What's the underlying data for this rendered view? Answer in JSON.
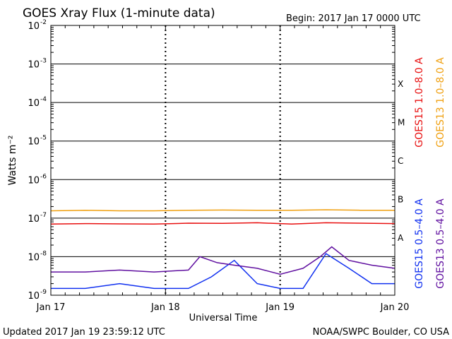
{
  "chart_data": {
    "type": "line",
    "title": "GOES Xray Flux (1-minute data)",
    "begin_label": "Begin:  2017 Jan 17 0000 UTC",
    "ylabel": "Watts m⁻²",
    "xlabel": "Universal Time",
    "y_scale": "log",
    "ylim": [
      1e-09,
      0.01
    ],
    "y_ticks": [
      {
        "value": 0.01,
        "label_base": "10",
        "label_exp": "-2"
      },
      {
        "value": 0.001,
        "label_base": "10",
        "label_exp": "-3"
      },
      {
        "value": 0.0001,
        "label_base": "10",
        "label_exp": "-4"
      },
      {
        "value": 1e-05,
        "label_base": "10",
        "label_exp": "-5"
      },
      {
        "value": 1e-06,
        "label_base": "10",
        "label_exp": "-6"
      },
      {
        "value": 1e-07,
        "label_base": "10",
        "label_exp": "-7"
      },
      {
        "value": 1e-08,
        "label_base": "10",
        "label_exp": "-8"
      },
      {
        "value": 1e-09,
        "label_base": "10",
        "label_exp": "-9"
      }
    ],
    "x_ticks": [
      "Jan 17",
      "Jan 18",
      "Jan 19",
      "Jan 20"
    ],
    "xlim_days": [
      0,
      3
    ],
    "flare_classes": [
      {
        "label": "X",
        "value": 0.000316
      },
      {
        "label": "M",
        "value": 3.16e-05
      },
      {
        "label": "C",
        "value": 3.16e-06
      },
      {
        "label": "B",
        "value": 3.16e-07
      },
      {
        "label": "A",
        "value": 3.16e-08
      }
    ],
    "series": [
      {
        "name": "GOES15 1.0–8.0 A",
        "color": "#e81010",
        "x": [
          0,
          0.3,
          0.6,
          0.9,
          1.2,
          1.5,
          1.8,
          2.1,
          2.4,
          2.7,
          3.0
        ],
        "y": [
          7e-08,
          7.2e-08,
          7.1e-08,
          7e-08,
          7.4e-08,
          7.3e-08,
          7.6e-08,
          7e-08,
          7.6e-08,
          7.4e-08,
          7.2e-08
        ]
      },
      {
        "name": "GOES13 1.0–8.0 A",
        "color": "#f0a010",
        "x": [
          0,
          0.3,
          0.6,
          0.9,
          1.2,
          1.5,
          1.8,
          2.1,
          2.4,
          2.7,
          3.0
        ],
        "y": [
          1.55e-07,
          1.6e-07,
          1.55e-07,
          1.55e-07,
          1.6e-07,
          1.62e-07,
          1.6e-07,
          1.6e-07,
          1.65e-07,
          1.6e-07,
          1.6e-07
        ]
      },
      {
        "name": "GOES15 0.5–4.0 A",
        "color": "#1030f0",
        "x": [
          0,
          0.3,
          0.6,
          0.9,
          1.2,
          1.4,
          1.6,
          1.8,
          2.0,
          2.2,
          2.4,
          2.6,
          2.8,
          3.0
        ],
        "y": [
          1.5e-09,
          1.5e-09,
          2e-09,
          1.5e-09,
          1.5e-09,
          3e-09,
          8e-09,
          2e-09,
          1.5e-09,
          1.5e-09,
          1.2e-08,
          5e-09,
          2e-09,
          2e-09
        ]
      },
      {
        "name": "GOES13 0.5–4.0 A",
        "color": "#6010a0",
        "x": [
          0,
          0.3,
          0.6,
          0.9,
          1.2,
          1.3,
          1.45,
          1.6,
          1.8,
          2.0,
          2.2,
          2.35,
          2.45,
          2.6,
          2.8,
          3.0
        ],
        "y": [
          4e-09,
          4e-09,
          4.5e-09,
          4e-09,
          4.5e-09,
          1e-08,
          7e-09,
          6e-09,
          5e-09,
          3.5e-09,
          5e-09,
          1e-08,
          1.8e-08,
          8e-09,
          6e-09,
          5e-09
        ]
      }
    ]
  },
  "footer": {
    "updated": "Updated 2017 Jan 19 23:59:12 UTC",
    "credit": "NOAA/SWPC Boulder, CO USA"
  }
}
